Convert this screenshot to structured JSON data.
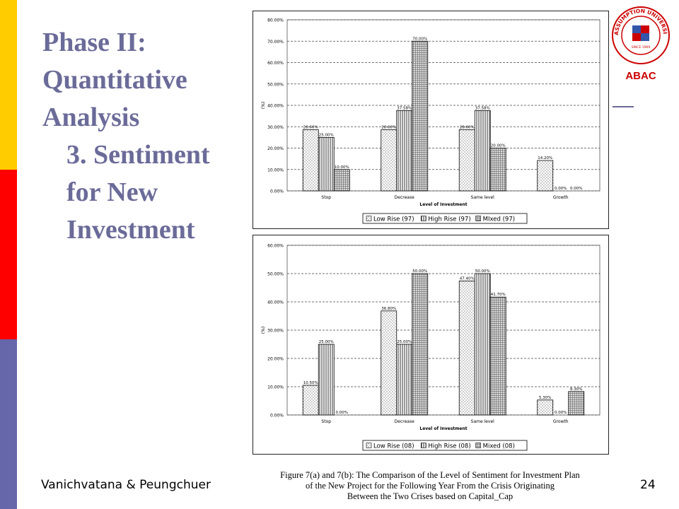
{
  "slide": {
    "title_lines": [
      "Phase II:",
      "Quantitative",
      "Analysis",
      "3. Sentiment",
      "for New",
      "Investment"
    ],
    "author": "Vanichvatana & Peungchuer",
    "page_number": "24",
    "caption_lines": [
      "Figure 7(a) and 7(b): The Comparison of the Level of Sentiment for Investment Plan",
      "of the New Project for the Following Year From the Crisis Originating",
      "Between the Two Crises based on Capital_Cap"
    ],
    "logo": {
      "text": "ABAC",
      "ring_text": "ASSUMPTION UNIVERSITY OF THAILAND",
      "seal_year": "SINCE 1969",
      "color": "#cc0000"
    },
    "colors": {
      "title": "#6b6b99",
      "sidebar": [
        "#ffcc00",
        "#ff0000",
        "#6666aa"
      ]
    }
  },
  "chart_data": [
    {
      "type": "bar",
      "xlabel": "Level of Investment",
      "ylabel": "(%)",
      "ylim": [
        0,
        80
      ],
      "ytick_labels": [
        "0.00%",
        "10.00%",
        "20.00%",
        "30.00%",
        "40.00%",
        "50.00%",
        "60.00%",
        "70.00%",
        "80.00%"
      ],
      "categories": [
        "Stop",
        "Decrease",
        "Same level",
        "Growth"
      ],
      "series": [
        {
          "name": "Low Rise (97)",
          "values": [
            28.6,
            28.6,
            28.6,
            14.2
          ],
          "labels": [
            "28.60%",
            "28.60%",
            "28.60%",
            "14.20%"
          ],
          "pattern": "dots"
        },
        {
          "name": "High Rise (97)",
          "values": [
            25.0,
            37.58,
            37.58,
            0.0
          ],
          "labels": [
            "25.00%",
            "37.58%",
            "37.58%",
            "0.00%"
          ],
          "pattern": "vlines"
        },
        {
          "name": "MIxed (97)",
          "values": [
            10.0,
            70.0,
            20.0,
            0.0
          ],
          "labels": [
            "10.00%",
            "70.00%",
            "20.00%",
            "0.00%"
          ],
          "pattern": "cross"
        }
      ],
      "grid": true,
      "legend_position": "bottom"
    },
    {
      "type": "bar",
      "xlabel": "Level of Investment",
      "ylabel": "(%)",
      "ylim": [
        0,
        60
      ],
      "ytick_labels": [
        "0.00%",
        "10.00%",
        "20.00%",
        "30.00%",
        "40.00%",
        "50.00%",
        "60.00%"
      ],
      "categories": [
        "Stop",
        "Decrease",
        "Same level",
        "Growth"
      ],
      "series": [
        {
          "name": "Low Rise (08)",
          "values": [
            10.5,
            36.8,
            47.4,
            5.3
          ],
          "labels": [
            "10.50%",
            "36.80%",
            "47.40%",
            "5.30%"
          ],
          "pattern": "dots"
        },
        {
          "name": "High Rise (08)",
          "values": [
            25.0,
            25.0,
            50.0,
            0.0
          ],
          "labels": [
            "25.00%",
            "25.00%",
            "50.00%",
            "0.00%"
          ],
          "pattern": "vlines"
        },
        {
          "name": "Mixed (08)",
          "values": [
            0.0,
            50.0,
            41.7,
            8.3
          ],
          "labels": [
            "0.00%",
            "50.00%",
            "41.70%",
            "8.30%"
          ],
          "pattern": "cross"
        }
      ],
      "grid": true,
      "legend_position": "bottom"
    }
  ]
}
